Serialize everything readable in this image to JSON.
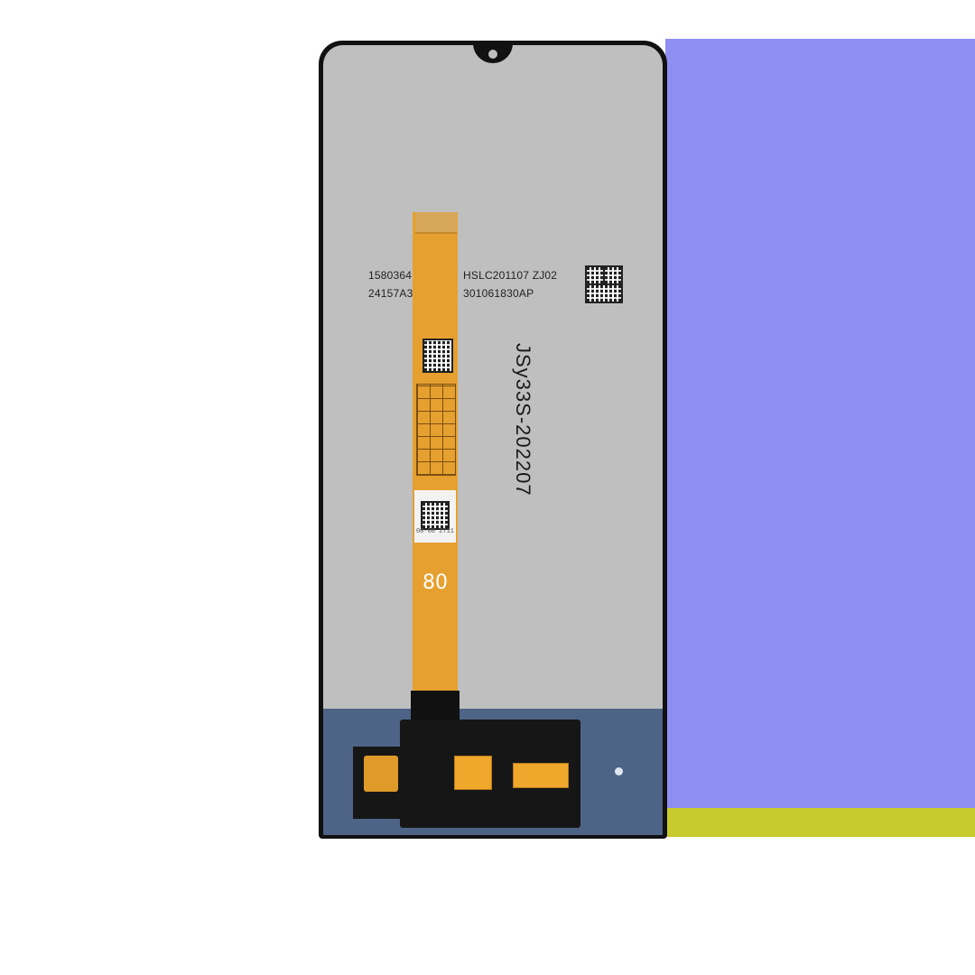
{
  "product": {
    "batch_line_1_left": "1580364",
    "batch_line_1_right": "HSLC201107 ZJ02",
    "batch_line_2_left": "24157A3",
    "batch_line_2_right": "301061830AP",
    "vertical_code": "JSy33S-202207",
    "flex_number": "80",
    "flex_label_text": "00-00 2711"
  },
  "colors": {
    "background_violet": "#8f8ef3",
    "background_yellow": "#c8cb2d",
    "panel_back": "#bfbfbf",
    "flex_cable": "#e6a02f",
    "plate": "#4d6487"
  }
}
